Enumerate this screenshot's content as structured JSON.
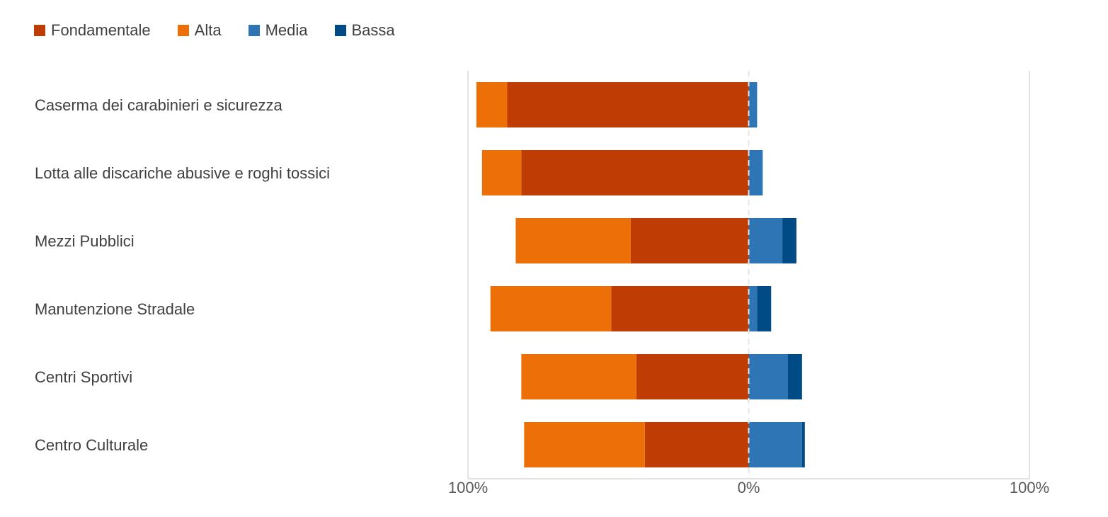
{
  "chart_data": {
    "type": "bar",
    "orientation": "horizontal",
    "stacking": "diverging",
    "categories": [
      "Caserma dei carabinieri e sicurezza",
      "Lotta alle discariche abusive e roghi tossici",
      "Mezzi Pubblici",
      "Manutenzione Stradale",
      "Centri Sportivi",
      "Centro Culturale"
    ],
    "series": [
      {
        "name": "Fondamentale",
        "side": "left",
        "color": "#BF3C04",
        "values": [
          86,
          81,
          42,
          49,
          40,
          37
        ]
      },
      {
        "name": "Alta",
        "side": "left",
        "color": "#EC7007",
        "values": [
          11,
          14,
          41,
          43,
          41,
          43
        ]
      },
      {
        "name": "Media",
        "side": "right",
        "color": "#2E75B6",
        "values": [
          3,
          5,
          12,
          3,
          14,
          19
        ]
      },
      {
        "name": "Bassa",
        "side": "right",
        "color": "#004A85",
        "values": [
          0,
          0,
          5,
          5,
          5,
          1
        ]
      }
    ],
    "xlim": [
      -100,
      100
    ],
    "x_ticks": [
      -100,
      0,
      100
    ],
    "x_tick_labels": [
      "100%",
      "0%",
      "100%"
    ],
    "legend": "top-left",
    "grid": true
  }
}
